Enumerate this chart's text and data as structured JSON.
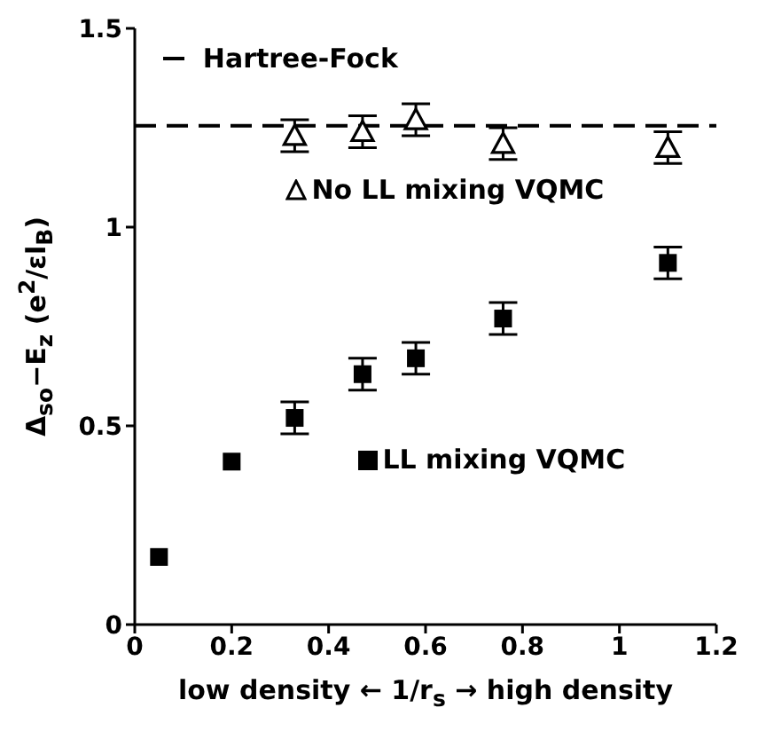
{
  "chart_data": {
    "type": "scatter",
    "xlabel": "low density ←  1/r$_{s}$ → high density",
    "ylabel": "Δ$_{so}$−E$_{z}$  (e$^{2}$/εl$_{B}$)",
    "xlim": [
      0,
      1.2
    ],
    "xticks": [
      0,
      0.2,
      0.4,
      0.6,
      0.8,
      1,
      1.2
    ],
    "ylim": [
      0,
      1.5
    ],
    "yticks": [
      0,
      0.5,
      1,
      1.5
    ],
    "grid": false,
    "legend": "top left",
    "series": [
      {
        "name": "No LL mixing VQMC",
        "color": "#000000",
        "marker": "triangle",
        "x": [
          0.33,
          0.47,
          0.58,
          0.76,
          1.1
        ],
        "values": [
          1.23,
          1.24,
          1.27,
          1.21,
          1.2
        ],
        "errors": [
          0.04,
          0.04,
          0.04,
          0.04,
          0.04
        ]
      },
      {
        "name": "LL mixing VQMC",
        "color": "#000000",
        "marker": "square",
        "x": [
          0.05,
          0.2,
          0.33,
          0.47,
          0.58,
          0.76,
          1.1
        ],
        "values": [
          0.17,
          0.41,
          0.52,
          0.63,
          0.67,
          0.77,
          0.91
        ],
        "errors": [
          null,
          null,
          0.04,
          0.04,
          0.04,
          0.04,
          0.04
        ]
      }
    ],
    "ref_lines": [
      {
        "axis": "y",
        "value": 1.255,
        "label": "Hartree-Fock",
        "line_style": "dashed",
        "color": "#000000"
      }
    ]
  }
}
